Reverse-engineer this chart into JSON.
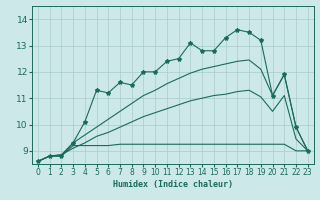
{
  "xlabel": "Humidex (Indice chaleur)",
  "xlim": [
    -0.5,
    23.5
  ],
  "ylim": [
    8.5,
    14.5
  ],
  "yticks": [
    9,
    10,
    11,
    12,
    13,
    14
  ],
  "xticks": [
    0,
    1,
    2,
    3,
    4,
    5,
    6,
    7,
    8,
    9,
    10,
    11,
    12,
    13,
    14,
    15,
    16,
    17,
    18,
    19,
    20,
    21,
    22,
    23
  ],
  "bg_color": "#cce8e8",
  "grid_color": "#aacccc",
  "line_color": "#1a6b5a",
  "main_line": [
    8.6,
    8.8,
    8.8,
    9.3,
    10.1,
    11.3,
    11.2,
    11.6,
    11.5,
    12.0,
    12.0,
    12.4,
    12.5,
    13.1,
    12.8,
    12.8,
    13.3,
    13.6,
    13.5,
    13.2,
    11.1,
    11.9,
    9.9,
    9.0
  ],
  "line_flat": [
    8.6,
    8.8,
    8.8,
    9.2,
    9.2,
    9.2,
    9.2,
    9.25,
    9.25,
    9.25,
    9.25,
    9.25,
    9.25,
    9.25,
    9.25,
    9.25,
    9.25,
    9.25,
    9.25,
    9.25,
    9.25,
    9.25,
    9.0,
    9.0
  ],
  "line_upper": [
    8.6,
    8.8,
    8.85,
    9.3,
    9.6,
    9.9,
    10.2,
    10.5,
    10.8,
    11.1,
    11.3,
    11.55,
    11.75,
    11.95,
    12.1,
    12.2,
    12.3,
    12.4,
    12.45,
    12.1,
    11.1,
    11.9,
    9.9,
    9.0
  ],
  "line_diag": [
    8.6,
    8.8,
    8.85,
    9.1,
    9.3,
    9.55,
    9.7,
    9.9,
    10.1,
    10.3,
    10.45,
    10.6,
    10.75,
    10.9,
    11.0,
    11.1,
    11.15,
    11.25,
    11.3,
    11.05,
    10.5,
    11.1,
    9.45,
    9.0
  ]
}
